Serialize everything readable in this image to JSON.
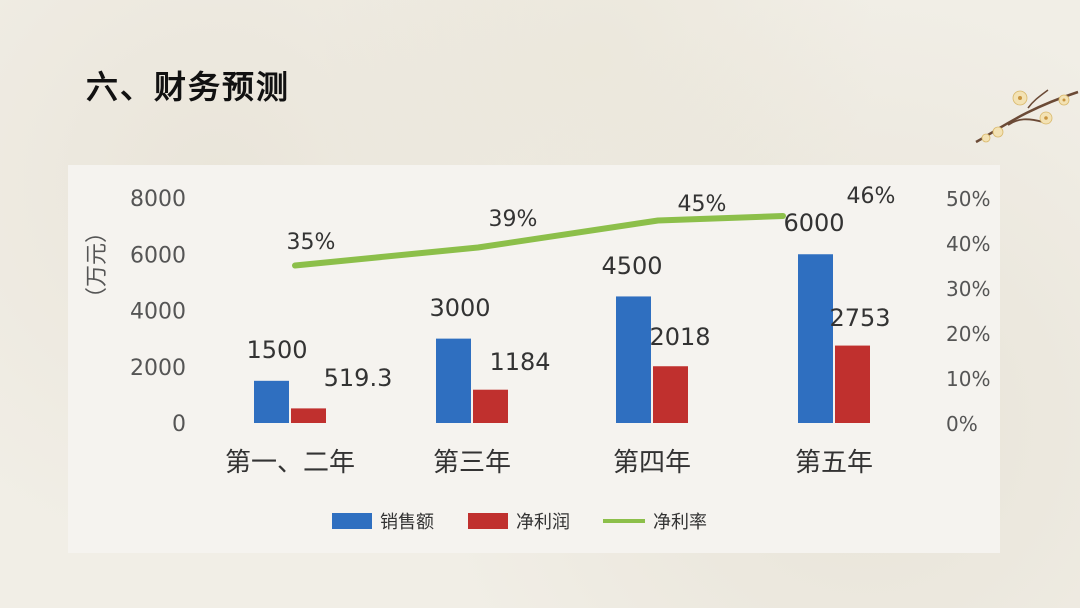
{
  "page": {
    "title": "六、财务预测"
  },
  "colors": {
    "sales": "#2f6fc0",
    "profit": "#c0302e",
    "rate": "#8cbf4a",
    "axis_text": "#555555",
    "label_text": "#333333"
  },
  "chart_data": {
    "type": "bar",
    "categories": [
      "第一、二年",
      "第三年",
      "第四年",
      "第五年"
    ],
    "series": [
      {
        "name": "销售额",
        "type": "bar",
        "axis": "left",
        "values": [
          1500,
          3000,
          4500,
          6000
        ],
        "labels": [
          "1500",
          "3000",
          "4500",
          "6000"
        ]
      },
      {
        "name": "净利润",
        "type": "bar",
        "axis": "left",
        "values": [
          519.3,
          1184,
          2018,
          2753
        ],
        "labels": [
          "519.3",
          "1184",
          "2018",
          "2753"
        ]
      },
      {
        "name": "净利率",
        "type": "line",
        "axis": "right",
        "values": [
          35,
          39,
          45,
          46
        ],
        "labels": [
          "35%",
          "39%",
          "45%",
          "46%"
        ]
      }
    ],
    "ylabel": "（万元）",
    "ylim": [
      0,
      8000
    ],
    "yticks": [
      "0",
      "2000",
      "4000",
      "6000",
      "8000"
    ],
    "y2lim": [
      0,
      50
    ],
    "y2ticks": [
      "0%",
      "10%",
      "20%",
      "30%",
      "40%",
      "50%"
    ],
    "grid": false,
    "legend": "bottom"
  }
}
